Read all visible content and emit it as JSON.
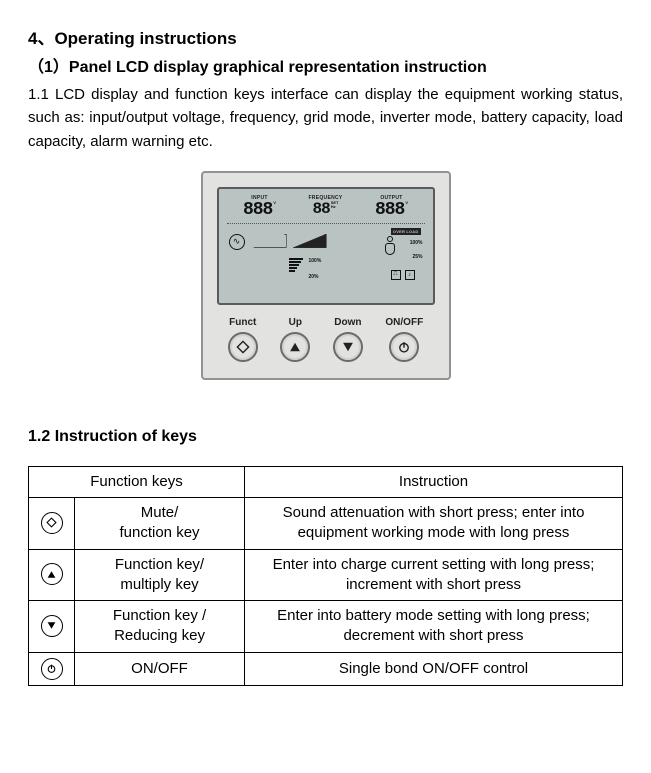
{
  "heading": "4、Operating instructions",
  "subheading": "（1）Panel LCD display graphical representation instruction",
  "intro": "1.1 LCD display and function keys interface can display the equipment working status, such as: input/output voltage, frequency, grid mode, inverter mode, battery capacity, load capacity, alarm warning etc.",
  "panel": {
    "lcd": {
      "input_label": "INPUT",
      "freq_label": "FREQUENCY",
      "output_label": "OUTPUT",
      "seg_input": "888",
      "seg_freq": "88",
      "seg_output": "888",
      "unit_v": "V",
      "unit_set": "SET",
      "unit_hz": "Hz",
      "overload": "OVER LOAD",
      "pct_100a": "100%",
      "pct_100b": "100%",
      "pct_25": "25%",
      "pct_20": "20%"
    },
    "buttons": [
      {
        "label": "Funct",
        "icon": "diamond"
      },
      {
        "label": "Up",
        "icon": "up"
      },
      {
        "label": "Down",
        "icon": "down"
      },
      {
        "label": "ON/OFF",
        "icon": "power"
      }
    ]
  },
  "keys_heading": "1.2 Instruction of keys",
  "table": {
    "head_fn": "Function keys",
    "head_instr": "Instruction",
    "rows": [
      {
        "icon": "diamond",
        "key": "Mute/\nfunction key",
        "instr": "Sound attenuation with short press; enter into equipment working mode with long press"
      },
      {
        "icon": "up",
        "key": "Function key/\nmultiply key",
        "instr": "Enter into charge current setting with long press; increment with short press"
      },
      {
        "icon": "down",
        "key": "Function key /\nReducing key",
        "instr": "Enter into battery mode setting with long press; decrement with short press"
      },
      {
        "icon": "power",
        "key": "ON/OFF",
        "instr": "Single bond ON/OFF control"
      }
    ]
  },
  "colors": {
    "panel_bg": "#e2e2e0",
    "panel_border": "#929292",
    "lcd_bg": "#b9c3c2",
    "text": "#000000"
  }
}
